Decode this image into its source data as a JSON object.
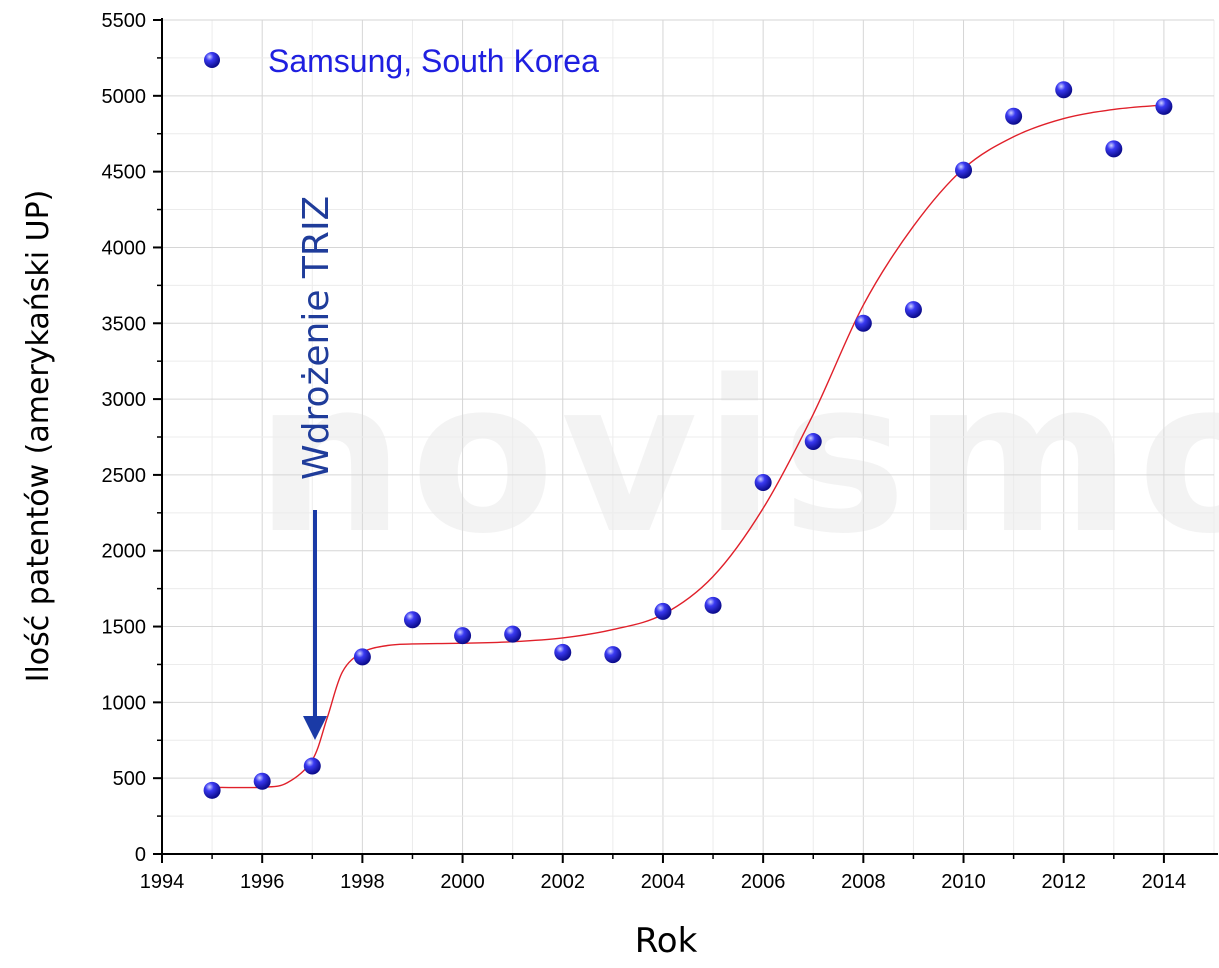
{
  "chart_data": {
    "type": "scatter",
    "xlabel": "Rok",
    "ylabel": "Ilość patentów (amerykański UP)",
    "xlim": [
      1994,
      2015
    ],
    "ylim": [
      0,
      5500
    ],
    "x_ticks": [
      "1994",
      "1996",
      "1998",
      "2000",
      "2002",
      "2004",
      "2006",
      "2008",
      "2010",
      "2012",
      "2014"
    ],
    "y_ticks": [
      "0",
      "500",
      "1000",
      "1500",
      "2000",
      "2500",
      "3000",
      "3500",
      "4000",
      "4500",
      "5000",
      "5500"
    ],
    "grid": true,
    "legend_position": "top-left",
    "series": [
      {
        "name": "Samsung, South Korea",
        "color": "#1f1fe0",
        "x": [
          1995,
          1996,
          1997,
          1998,
          1999,
          2000,
          2001,
          2002,
          2003,
          2004,
          2005,
          2006,
          2007,
          2008,
          2009,
          2010,
          2011,
          2012,
          2013,
          2014
        ],
        "y": [
          420,
          480,
          580,
          1300,
          1545,
          1440,
          1450,
          1330,
          1315,
          1600,
          1640,
          2450,
          2720,
          3500,
          3590,
          4510,
          4865,
          5040,
          4650,
          4930
        ]
      }
    ],
    "fit_curve": {
      "color": "#e0202a",
      "x": [
        1995,
        1996,
        1996.5,
        1997,
        1997.3,
        1997.6,
        1998,
        1998.5,
        1999,
        2000,
        2001,
        2002,
        2003,
        2004,
        2005,
        2006,
        2007,
        2008,
        2009,
        2010,
        2011,
        2012,
        2013,
        2014
      ],
      "y": [
        440,
        440,
        470,
        620,
        900,
        1200,
        1330,
        1375,
        1385,
        1390,
        1400,
        1425,
        1480,
        1580,
        1830,
        2280,
        2900,
        3620,
        4140,
        4520,
        4730,
        4850,
        4910,
        4940
      ]
    },
    "annotations": [
      {
        "text": "Wdrożenie TRIZ",
        "x": 1997,
        "arrow_to_y": 750,
        "color": "#1f3c9a"
      }
    ]
  },
  "watermark": "novismo"
}
